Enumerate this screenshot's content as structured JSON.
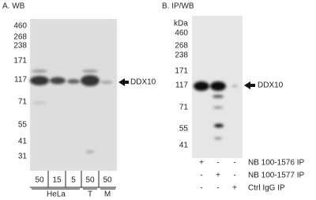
{
  "panel_a": {
    "title": "A. WB",
    "markers": [
      "460",
      "268",
      "238",
      "171",
      "117",
      "71",
      "55",
      "41",
      "31"
    ],
    "target": "DDX10",
    "lanes": [
      "50",
      "15",
      "5",
      "50",
      "50"
    ],
    "groups": [
      "HeLa",
      "T",
      "M"
    ]
  },
  "panel_b": {
    "title": "B. IP/WB",
    "unit": "kDa",
    "markers": [
      "460",
      "268",
      "238",
      "171",
      "117",
      "71",
      "55",
      "41"
    ],
    "target": "DDX10",
    "rows": [
      {
        "signs": [
          "+",
          "-",
          "-"
        ],
        "label": "NB 100-1576 IP"
      },
      {
        "signs": [
          "-",
          "+",
          "-"
        ],
        "label": "NB 100-1577 IP"
      },
      {
        "signs": [
          "-",
          "-",
          "+"
        ],
        "label": "Ctrl IgG IP"
      }
    ]
  }
}
